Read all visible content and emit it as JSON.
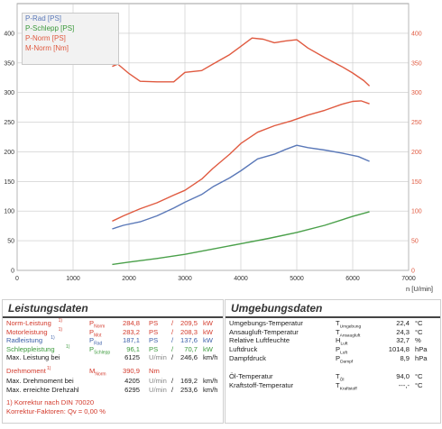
{
  "chart_data": {
    "type": "line",
    "xlim": [
      0,
      7000
    ],
    "ylim_left": [
      0,
      450
    ],
    "ylim_right": [
      0,
      450
    ],
    "x_ticks": [
      0,
      1000,
      2000,
      3000,
      4000,
      5000,
      6000,
      7000
    ],
    "y_ticks_left": [
      0,
      50,
      100,
      150,
      200,
      250,
      300,
      350,
      400
    ],
    "y_ticks_right": [
      0,
      50,
      100,
      150,
      200,
      250,
      300,
      350,
      400
    ],
    "x_unit_label": "n [U/min]",
    "grid": true,
    "legend_position": "top-left",
    "series": [
      {
        "name": "P-Rad [PS]",
        "color": "#5a78b8",
        "x": [
          1700,
          1900,
          2200,
          2500,
          2800,
          3000,
          3300,
          3500,
          3800,
          4000,
          4300,
          4600,
          4800,
          5000,
          5200,
          5500,
          5800,
          6100,
          6300
        ],
        "y": [
          70,
          76,
          82,
          92,
          105,
          115,
          128,
          141,
          156,
          168,
          188,
          196,
          204,
          211,
          207,
          203,
          198,
          192,
          184
        ]
      },
      {
        "name": "P-Schlepp [PS]",
        "color": "#4aa04a",
        "x": [
          1700,
          2000,
          2500,
          3000,
          3500,
          4000,
          4500,
          5000,
          5500,
          6000,
          6300
        ],
        "y": [
          10,
          14,
          20,
          27,
          36,
          45,
          54,
          64,
          76,
          91,
          99
        ]
      },
      {
        "name": "P-Norm [PS]",
        "color": "#e05a40",
        "x": [
          1700,
          1900,
          2200,
          2500,
          2800,
          3000,
          3300,
          3500,
          3800,
          4000,
          4300,
          4600,
          4900,
          5200,
          5500,
          5800,
          6000,
          6150,
          6300
        ],
        "y": [
          83,
          92,
          104,
          114,
          127,
          135,
          154,
          172,
          196,
          214,
          233,
          244,
          252,
          262,
          270,
          280,
          285,
          286,
          281
        ]
      },
      {
        "name": "M-Norm [Nm]",
        "color": "#e05a40",
        "x": [
          1700,
          1800,
          2000,
          2200,
          2500,
          2800,
          3000,
          3300,
          3500,
          3800,
          4000,
          4200,
          4400,
          4600,
          4800,
          5000,
          5200,
          5500,
          5800,
          6000,
          6200,
          6300
        ],
        "y": [
          344,
          348,
          332,
          319,
          318,
          318,
          334,
          337,
          348,
          364,
          378,
          392,
          390,
          384,
          387,
          389,
          375,
          359,
          344,
          333,
          320,
          311
        ]
      }
    ]
  },
  "legend": {
    "p_rad": "P-Rad [PS]",
    "p_schlepp": "P-Schlepp [PS]",
    "p_norm": "P-Norm [PS]",
    "m_norm": "M-Norm [Nm]"
  },
  "leistung": {
    "title": "Leistungsdaten",
    "rows": [
      {
        "label": "Norm-Leistung",
        "sup": "1)",
        "sym": "PNorm",
        "v1": "284,8",
        "u1": "PS",
        "sep": "/",
        "v2": "209,5",
        "u2": "kW",
        "color": "#d33a2c"
      },
      {
        "label": "Motorleistung",
        "sup": "1)",
        "sym": "PMot",
        "v1": "283,2",
        "u1": "PS",
        "sep": "/",
        "v2": "208,3",
        "u2": "kW",
        "color": "#d33a2c"
      },
      {
        "label": "Radleistung",
        "sup": "1)",
        "sym": "PRad",
        "v1": "187,1",
        "u1": "PS",
        "sep": "/",
        "v2": "137,6",
        "u2": "kW",
        "color": "#3b5fa8"
      },
      {
        "label": "Schleppleistung",
        "sup": "1)",
        "sym": "PSchlepp",
        "v1": "96,1",
        "u1": "PS",
        "sep": "/",
        "v2": "70,7",
        "u2": "kW",
        "color": "#3c9a3c"
      },
      {
        "label": "Max. Leistung bei",
        "sup": "",
        "sym": "",
        "v1": "6125",
        "u1": "U/min",
        "sep": "/",
        "v2": "246,6",
        "u2": "km/h",
        "color": "#222222"
      }
    ],
    "torque_rows": [
      {
        "label": "Drehmoment",
        "sup": "1)",
        "sym": "MNorm",
        "v1": "390,9",
        "u1": "Nm",
        "sep": "",
        "v2": "",
        "u2": "",
        "color": "#d33a2c"
      },
      {
        "label": "Max. Drehmoment bei",
        "sup": "",
        "sym": "",
        "v1": "4205",
        "u1": "U/min",
        "sep": "/",
        "v2": "169,2",
        "u2": "km/h",
        "color": "#222222"
      },
      {
        "label": "Max. erreichte Drehzahl",
        "sup": "",
        "sym": "",
        "v1": "6295",
        "u1": "U/min",
        "sep": "/",
        "v2": "253,6",
        "u2": "km/h",
        "color": "#222222"
      }
    ],
    "note1": "1) Korrektur nach DIN 70020",
    "note2": "Korrektur-Faktoren: Qv = 0,00 %"
  },
  "umgebung": {
    "title": "Umgebungsdaten",
    "rows": [
      {
        "label": "Umgebungs-Temperatur",
        "sym": "TUmgebung",
        "val": "22,4",
        "unit": "°C"
      },
      {
        "label": "Ansaugluft-Temperatur",
        "sym": "TAnsaugluft",
        "val": "24,3",
        "unit": "°C"
      },
      {
        "label": "Relative Luftfeuchte",
        "sym": "HLuft",
        "val": "32,7",
        "unit": "%"
      },
      {
        "label": "Luftdruck",
        "sym": "PLuft",
        "val": "1014,8",
        "unit": "hPa"
      },
      {
        "label": "Dampfdruck",
        "sym": "PDampf",
        "val": "8,9",
        "unit": "hPa"
      },
      {
        "label": "Öl-Temperatur",
        "sym": "TÖl",
        "val": "94,0",
        "unit": "°C"
      },
      {
        "label": "Kraftstoff-Temperatur",
        "sym": "TKraftstoff",
        "val": "---,-",
        "unit": "°C"
      }
    ]
  }
}
